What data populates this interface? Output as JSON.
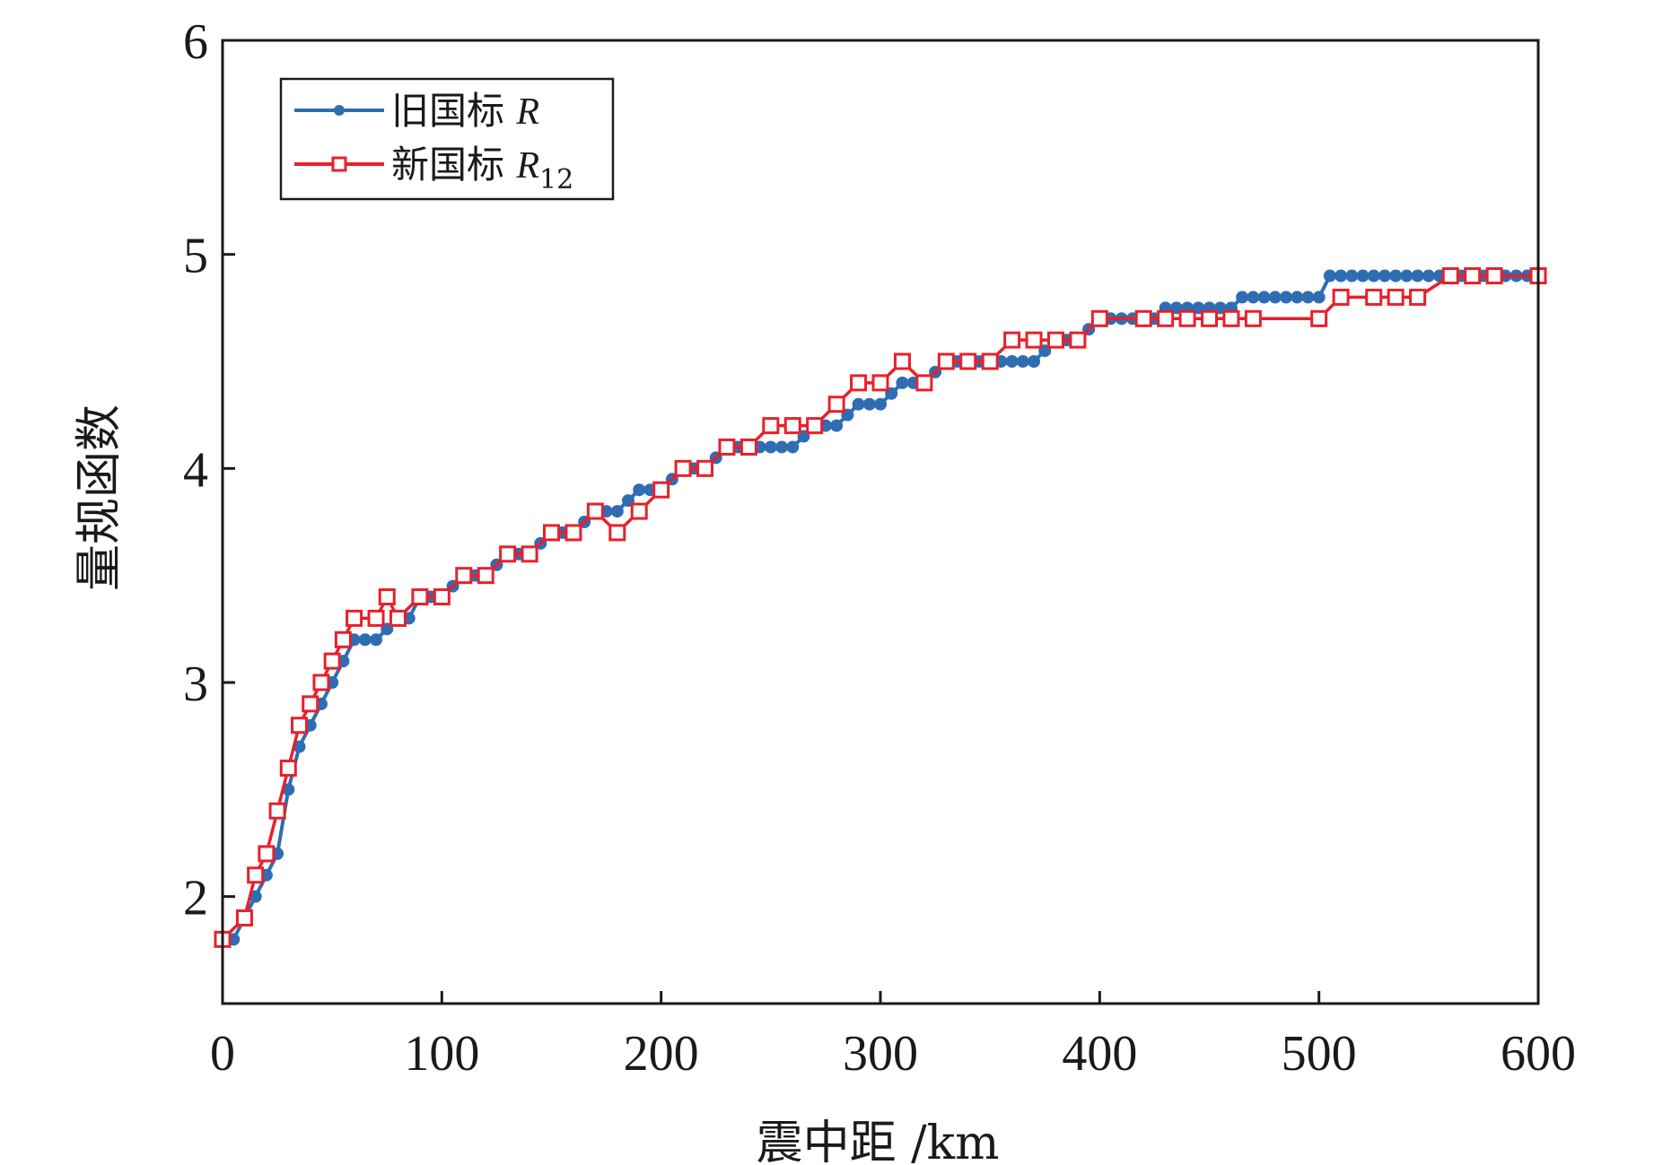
{
  "chart_data": {
    "type": "line",
    "title": "",
    "xlabel": "震中距 /km",
    "ylabel": "量规函数",
    "xlim": [
      0,
      600
    ],
    "ylim": [
      1.5,
      6
    ],
    "xticks": [
      "0",
      "100",
      "200",
      "300",
      "400",
      "500",
      "600"
    ],
    "yticks": [
      "2",
      "3",
      "4",
      "5",
      "6"
    ],
    "legend_position": "top-left",
    "series": [
      {
        "name": "旧国标 R",
        "name_main": "旧国标 ",
        "name_symbol": "R",
        "name_sub": "",
        "color": "#2f6db3",
        "marker": "filled-circle",
        "points": [
          [
            0,
            1.8
          ],
          [
            5,
            1.8
          ],
          [
            10,
            1.9
          ],
          [
            15,
            2.0
          ],
          [
            20,
            2.1
          ],
          [
            25,
            2.2
          ],
          [
            30,
            2.5
          ],
          [
            35,
            2.7
          ],
          [
            40,
            2.8
          ],
          [
            45,
            2.9
          ],
          [
            50,
            3.0
          ],
          [
            55,
            3.1
          ],
          [
            60,
            3.2
          ],
          [
            65,
            3.2
          ],
          [
            70,
            3.2
          ],
          [
            75,
            3.25
          ],
          [
            80,
            3.3
          ],
          [
            85,
            3.3
          ],
          [
            90,
            3.4
          ],
          [
            95,
            3.4
          ],
          [
            100,
            3.4
          ],
          [
            105,
            3.45
          ],
          [
            110,
            3.5
          ],
          [
            115,
            3.5
          ],
          [
            120,
            3.5
          ],
          [
            125,
            3.55
          ],
          [
            130,
            3.6
          ],
          [
            135,
            3.6
          ],
          [
            140,
            3.6
          ],
          [
            145,
            3.65
          ],
          [
            150,
            3.7
          ],
          [
            155,
            3.7
          ],
          [
            160,
            3.7
          ],
          [
            165,
            3.75
          ],
          [
            170,
            3.8
          ],
          [
            175,
            3.8
          ],
          [
            180,
            3.8
          ],
          [
            185,
            3.85
          ],
          [
            190,
            3.9
          ],
          [
            195,
            3.9
          ],
          [
            200,
            3.9
          ],
          [
            205,
            3.95
          ],
          [
            210,
            4.0
          ],
          [
            215,
            4.0
          ],
          [
            220,
            4.0
          ],
          [
            225,
            4.05
          ],
          [
            230,
            4.1
          ],
          [
            235,
            4.1
          ],
          [
            240,
            4.1
          ],
          [
            245,
            4.1
          ],
          [
            250,
            4.1
          ],
          [
            255,
            4.1
          ],
          [
            260,
            4.1
          ],
          [
            265,
            4.15
          ],
          [
            270,
            4.2
          ],
          [
            275,
            4.2
          ],
          [
            280,
            4.2
          ],
          [
            285,
            4.25
          ],
          [
            290,
            4.3
          ],
          [
            295,
            4.3
          ],
          [
            300,
            4.3
          ],
          [
            305,
            4.35
          ],
          [
            310,
            4.4
          ],
          [
            315,
            4.4
          ],
          [
            320,
            4.4
          ],
          [
            325,
            4.45
          ],
          [
            330,
            4.5
          ],
          [
            335,
            4.5
          ],
          [
            340,
            4.5
          ],
          [
            345,
            4.5
          ],
          [
            350,
            4.5
          ],
          [
            355,
            4.5
          ],
          [
            360,
            4.5
          ],
          [
            365,
            4.5
          ],
          [
            370,
            4.5
          ],
          [
            375,
            4.55
          ],
          [
            380,
            4.6
          ],
          [
            385,
            4.6
          ],
          [
            390,
            4.6
          ],
          [
            395,
            4.65
          ],
          [
            400,
            4.7
          ],
          [
            405,
            4.7
          ],
          [
            410,
            4.7
          ],
          [
            415,
            4.7
          ],
          [
            420,
            4.7
          ],
          [
            425,
            4.7
          ],
          [
            430,
            4.75
          ],
          [
            435,
            4.75
          ],
          [
            440,
            4.75
          ],
          [
            445,
            4.75
          ],
          [
            450,
            4.75
          ],
          [
            455,
            4.75
          ],
          [
            460,
            4.75
          ],
          [
            465,
            4.8
          ],
          [
            470,
            4.8
          ],
          [
            475,
            4.8
          ],
          [
            480,
            4.8
          ],
          [
            485,
            4.8
          ],
          [
            490,
            4.8
          ],
          [
            495,
            4.8
          ],
          [
            500,
            4.8
          ],
          [
            505,
            4.9
          ],
          [
            510,
            4.9
          ],
          [
            515,
            4.9
          ],
          [
            520,
            4.9
          ],
          [
            525,
            4.9
          ],
          [
            530,
            4.9
          ],
          [
            535,
            4.9
          ],
          [
            540,
            4.9
          ],
          [
            545,
            4.9
          ],
          [
            550,
            4.9
          ],
          [
            555,
            4.9
          ],
          [
            560,
            4.9
          ],
          [
            565,
            4.9
          ],
          [
            570,
            4.9
          ],
          [
            575,
            4.9
          ],
          [
            580,
            4.9
          ],
          [
            585,
            4.9
          ],
          [
            590,
            4.9
          ],
          [
            595,
            4.9
          ],
          [
            600,
            4.9
          ]
        ]
      },
      {
        "name": "新国标 R12",
        "name_main": "新国标 ",
        "name_symbol": "R",
        "name_sub": "12",
        "color": "#e8202a",
        "marker": "open-square",
        "points": [
          [
            0,
            1.8
          ],
          [
            10,
            1.9
          ],
          [
            15,
            2.1
          ],
          [
            20,
            2.2
          ],
          [
            25,
            2.4
          ],
          [
            30,
            2.6
          ],
          [
            35,
            2.8
          ],
          [
            40,
            2.9
          ],
          [
            45,
            3.0
          ],
          [
            50,
            3.1
          ],
          [
            55,
            3.2
          ],
          [
            60,
            3.3
          ],
          [
            70,
            3.3
          ],
          [
            75,
            3.4
          ],
          [
            80,
            3.3
          ],
          [
            90,
            3.4
          ],
          [
            100,
            3.4
          ],
          [
            110,
            3.5
          ],
          [
            120,
            3.5
          ],
          [
            130,
            3.6
          ],
          [
            140,
            3.6
          ],
          [
            150,
            3.7
          ],
          [
            160,
            3.7
          ],
          [
            170,
            3.8
          ],
          [
            180,
            3.7
          ],
          [
            190,
            3.8
          ],
          [
            200,
            3.9
          ],
          [
            210,
            4.0
          ],
          [
            220,
            4.0
          ],
          [
            230,
            4.1
          ],
          [
            240,
            4.1
          ],
          [
            250,
            4.2
          ],
          [
            260,
            4.2
          ],
          [
            270,
            4.2
          ],
          [
            280,
            4.3
          ],
          [
            290,
            4.4
          ],
          [
            300,
            4.4
          ],
          [
            310,
            4.5
          ],
          [
            320,
            4.4
          ],
          [
            330,
            4.5
          ],
          [
            340,
            4.5
          ],
          [
            350,
            4.5
          ],
          [
            360,
            4.6
          ],
          [
            370,
            4.6
          ],
          [
            380,
            4.6
          ],
          [
            390,
            4.6
          ],
          [
            400,
            4.7
          ],
          [
            420,
            4.7
          ],
          [
            430,
            4.7
          ],
          [
            440,
            4.7
          ],
          [
            450,
            4.7
          ],
          [
            460,
            4.7
          ],
          [
            470,
            4.7
          ],
          [
            500,
            4.7
          ],
          [
            510,
            4.8
          ],
          [
            525,
            4.8
          ],
          [
            535,
            4.8
          ],
          [
            545,
            4.8
          ],
          [
            560,
            4.9
          ],
          [
            570,
            4.9
          ],
          [
            580,
            4.9
          ],
          [
            600,
            4.9
          ]
        ]
      }
    ]
  }
}
